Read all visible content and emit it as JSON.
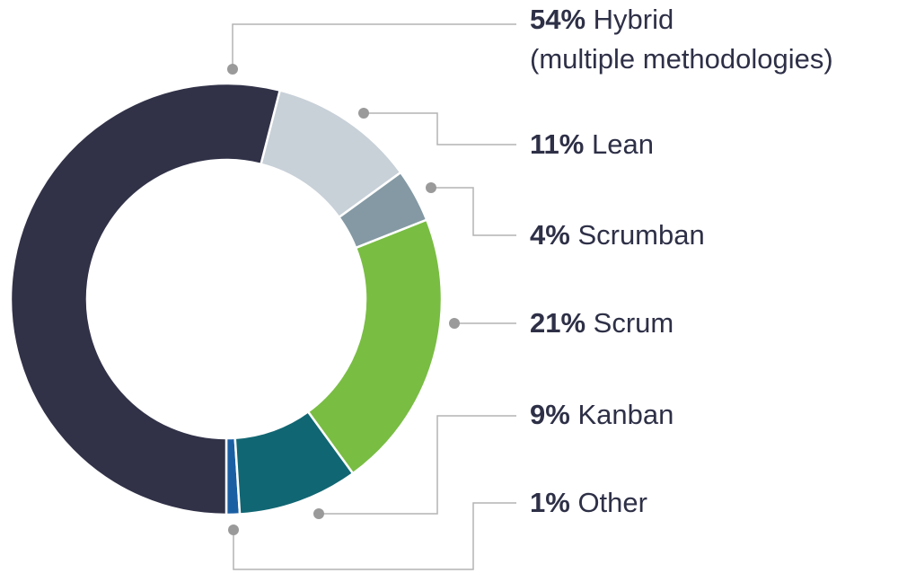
{
  "chart_data": {
    "type": "donut",
    "categories": [
      "Hybrid\n(multiple methodologies)",
      "Lean",
      "Scrumban",
      "Scrum",
      "Kanban",
      "Other"
    ],
    "values": [
      54,
      11,
      4,
      21,
      9,
      1
    ],
    "value_labels": [
      "54%",
      "11%",
      "4%",
      "21%",
      "9%",
      "1%"
    ],
    "colors": [
      "#313248",
      "#c8d0d8",
      "#8499a4",
      "#79bd43",
      "#116673",
      "#1b5fa3"
    ]
  }
}
